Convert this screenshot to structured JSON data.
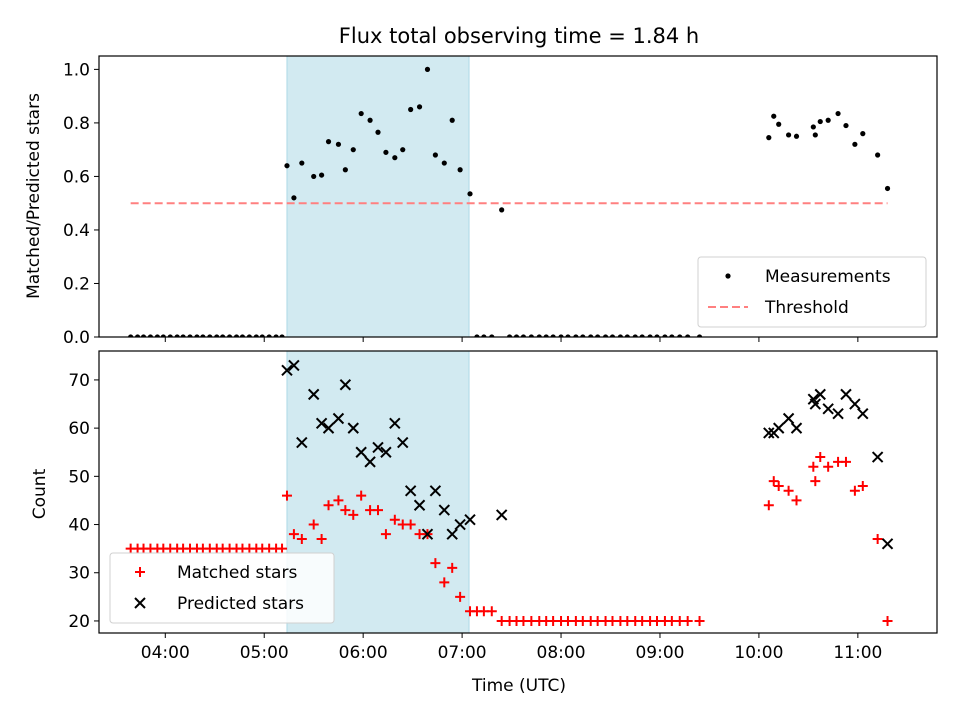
{
  "chart_data": {
    "title": "Flux total observing time = 1.84 h",
    "xlabel": "Time (UTC)",
    "x_unit": "hours (UTC)",
    "xlim": [
      3.33,
      11.8
    ],
    "xticks": [
      {
        "value": 4,
        "label": "04:00"
      },
      {
        "value": 5,
        "label": "05:00"
      },
      {
        "value": 6,
        "label": "06:00"
      },
      {
        "value": 7,
        "label": "07:00"
      },
      {
        "value": 8,
        "label": "08:00"
      },
      {
        "value": 9,
        "label": "09:00"
      },
      {
        "value": 10,
        "label": "10:00"
      },
      {
        "value": 11,
        "label": "11:00"
      }
    ],
    "observing_window": {
      "start": 5.23,
      "end": 7.07,
      "color": "#add8e6"
    },
    "panels": [
      {
        "type": "scatter",
        "ylabel": "Matched/Predicted stars",
        "ylim": [
          0,
          1.05
        ],
        "yticks": [
          "0.0",
          "0.2",
          "0.4",
          "0.6",
          "0.8",
          "1.0"
        ],
        "legend": "bottom-right",
        "series": [
          {
            "name": "Measurements",
            "marker": "dot",
            "color": "#000000",
            "x": [
              3.65,
              3.72,
              3.78,
              3.85,
              3.92,
              3.98,
              4.05,
              4.12,
              4.18,
              4.25,
              4.32,
              4.38,
              4.45,
              4.52,
              4.58,
              4.65,
              4.72,
              4.78,
              4.85,
              4.92,
              4.98,
              5.05,
              5.12,
              5.18,
              5.23,
              5.3,
              5.38,
              5.5,
              5.58,
              5.65,
              5.75,
              5.82,
              5.9,
              5.98,
              6.07,
              6.15,
              6.23,
              6.32,
              6.4,
              6.48,
              6.57,
              6.65,
              6.73,
              6.82,
              6.9,
              6.98,
              7.08,
              7.15,
              7.22,
              7.3,
              7.4,
              7.48,
              7.55,
              7.62,
              7.7,
              7.78,
              7.85,
              7.92,
              8.0,
              8.07,
              8.15,
              8.22,
              8.3,
              8.37,
              8.45,
              8.52,
              8.6,
              8.67,
              8.75,
              8.82,
              8.9,
              8.97,
              9.05,
              9.12,
              9.2,
              9.28,
              9.4,
              10.1,
              10.15,
              10.2,
              10.3,
              10.38,
              10.55,
              10.57,
              10.62,
              10.7,
              10.8,
              10.88,
              10.97,
              11.05,
              11.2,
              11.3
            ],
            "y": [
              0,
              0,
              0,
              0,
              0,
              0,
              0,
              0,
              0,
              0,
              0,
              0,
              0,
              0,
              0,
              0,
              0,
              0,
              0,
              0,
              0,
              0,
              0,
              0,
              0.64,
              0.52,
              0.65,
              0.6,
              0.605,
              0.73,
              0.72,
              0.625,
              0.7,
              0.835,
              0.81,
              0.765,
              0.69,
              0.67,
              0.7,
              0.85,
              0.86,
              1.0,
              0.68,
              0.65,
              0.81,
              0.625,
              0.535,
              0,
              0,
              0,
              0.475,
              0,
              0,
              0,
              0,
              0,
              0,
              0,
              0,
              0,
              0,
              0,
              0,
              0,
              0,
              0,
              0,
              0,
              0,
              0,
              0,
              0,
              0,
              0,
              0,
              0,
              0,
              0.745,
              0.825,
              0.795,
              0.755,
              0.75,
              0.785,
              0.755,
              0.805,
              0.81,
              0.835,
              0.79,
              0.72,
              0.76,
              0.68,
              0.555
            ]
          },
          {
            "name": "Threshold",
            "marker": "dashed-line",
            "color": "#ff8080",
            "x": [
              3.65,
              11.3
            ],
            "y": [
              0.5,
              0.5
            ]
          }
        ]
      },
      {
        "type": "scatter",
        "ylabel": "Count",
        "ylim": [
          17.5,
          76
        ],
        "yticks": [
          "20",
          "30",
          "40",
          "50",
          "60",
          "70"
        ],
        "legend": "bottom-left",
        "series": [
          {
            "name": "Matched stars",
            "marker": "plus",
            "color": "#ff0000",
            "x": [
              3.65,
              3.72,
              3.78,
              3.85,
              3.92,
              3.98,
              4.05,
              4.12,
              4.18,
              4.25,
              4.32,
              4.38,
              4.45,
              4.52,
              4.58,
              4.65,
              4.72,
              4.78,
              4.85,
              4.92,
              4.98,
              5.05,
              5.12,
              5.18,
              5.23,
              5.3,
              5.38,
              5.5,
              5.58,
              5.65,
              5.75,
              5.82,
              5.9,
              5.98,
              6.07,
              6.15,
              6.23,
              6.32,
              6.4,
              6.48,
              6.57,
              6.65,
              6.73,
              6.82,
              6.9,
              6.98,
              7.08,
              7.15,
              7.22,
              7.3,
              7.4,
              7.48,
              7.55,
              7.62,
              7.7,
              7.78,
              7.85,
              7.92,
              8.0,
              8.07,
              8.15,
              8.22,
              8.3,
              8.37,
              8.45,
              8.52,
              8.6,
              8.67,
              8.75,
              8.82,
              8.9,
              8.97,
              9.05,
              9.12,
              9.2,
              9.28,
              9.4,
              10.1,
              10.15,
              10.2,
              10.3,
              10.38,
              10.55,
              10.57,
              10.62,
              10.7,
              10.8,
              10.88,
              10.97,
              11.05,
              11.2,
              11.3
            ],
            "y": [
              35,
              35,
              35,
              35,
              35,
              35,
              35,
              35,
              35,
              35,
              35,
              35,
              35,
              35,
              35,
              35,
              35,
              35,
              35,
              35,
              35,
              35,
              35,
              35,
              46,
              38,
              37,
              40,
              37,
              44,
              45,
              43,
              42,
              46,
              43,
              43,
              38,
              41,
              40,
              40,
              38,
              38,
              32,
              28,
              31,
              25,
              22,
              22,
              22,
              22,
              20,
              20,
              20,
              20,
              20,
              20,
              20,
              20,
              20,
              20,
              20,
              20,
              20,
              20,
              20,
              20,
              20,
              20,
              20,
              20,
              20,
              20,
              20,
              20,
              20,
              20,
              20,
              44,
              49,
              48,
              47,
              45,
              52,
              49,
              54,
              52,
              53,
              53,
              47,
              48,
              37,
              20
            ]
          },
          {
            "name": "Predicted stars",
            "marker": "x",
            "color": "#000000",
            "x": [
              5.23,
              5.3,
              5.38,
              5.5,
              5.58,
              5.65,
              5.75,
              5.82,
              5.9,
              5.98,
              6.07,
              6.15,
              6.23,
              6.32,
              6.4,
              6.48,
              6.57,
              6.65,
              6.73,
              6.82,
              6.9,
              6.98,
              7.08,
              7.4,
              10.1,
              10.15,
              10.2,
              10.3,
              10.38,
              10.55,
              10.57,
              10.62,
              10.7,
              10.8,
              10.88,
              10.97,
              11.05,
              11.2,
              11.3
            ],
            "y": [
              72,
              73,
              57,
              67,
              61,
              60,
              62,
              69,
              60,
              55,
              53,
              56,
              55,
              61,
              57,
              47,
              44,
              38,
              47,
              43,
              38,
              40,
              41,
              42,
              59,
              59,
              60,
              62,
              60,
              66,
              65,
              67,
              64,
              63,
              67,
              65,
              63,
              54,
              36
            ]
          }
        ]
      }
    ]
  }
}
